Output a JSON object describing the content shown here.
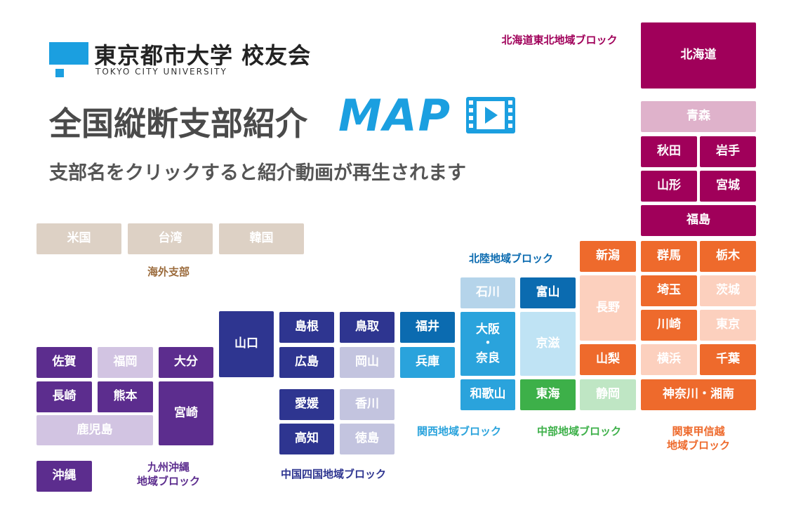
{
  "header": {
    "logo_title": "東京都市大学 校友会",
    "logo_subtitle": "TOKYO CITY UNIVERSITY",
    "headline": "全国縦断支部紹介",
    "headline_map": "MAP",
    "subline": "支部名をクリックすると紹介動画が再生されます",
    "video_icon": "video-play-icon"
  },
  "colors": {
    "brand": "#1b9fe0",
    "hokkaido_tohoku": "#a0005a",
    "kanto": "#ee6a2c",
    "chubu": "#3db049",
    "hokuriku": "#0b6bb0",
    "kansai": "#2aa3dc",
    "chugoku_shikoku": "#2e3590",
    "kyushu": "#5c2d8e",
    "overseas": "#ddd1c5"
  },
  "blocks": {
    "overseas": "海外支部",
    "hokkaido_tohoku": "北海道東北地域ブロック",
    "hokuriku": "北陸地域ブロック",
    "kansai": "関西地域ブロック",
    "chubu": "中部地域ブロック",
    "kanto": "関東甲信越\n地域ブロック",
    "chugoku_shikoku": "中国四国地域ブロック",
    "kyushu": "九州沖縄\n地域ブロック"
  },
  "branches": {
    "usa": "米国",
    "taiwan": "台湾",
    "korea": "韓国",
    "hokkaido": "北海道",
    "aomori": "青森",
    "akita": "秋田",
    "iwate": "岩手",
    "yamagata": "山形",
    "miyagi": "宮城",
    "fukushima": "福島",
    "niigata": "新潟",
    "gunma": "群馬",
    "tochigi": "栃木",
    "saitama": "埼玉",
    "ibaraki": "茨城",
    "nagano": "長野",
    "kawasaki": "川崎",
    "tokyo": "東京",
    "yamanashi": "山梨",
    "yokohama": "横浜",
    "chiba": "千葉",
    "shizuoka": "静岡",
    "kanagawa": "神奈川・湘南",
    "ishikawa": "石川",
    "toyama": "富山",
    "osaka_nara": "大阪\n・\n奈良",
    "shiga": "京滋",
    "wakayama": "和歌山",
    "tokai": "東海",
    "fukui": "福井",
    "hyogo": "兵庫",
    "shimane": "島根",
    "tottori": "鳥取",
    "hiroshima": "広島",
    "okayama": "岡山",
    "yamaguchi": "山口",
    "ehime": "愛媛",
    "kagawa": "香川",
    "kochi": "高知",
    "tokushima": "徳島",
    "saga": "佐賀",
    "fukuoka": "福岡",
    "oita": "大分",
    "nagasaki": "長崎",
    "kumamoto": "熊本",
    "miyazaki": "宮崎",
    "kagoshima": "鹿児島",
    "okinawa": "沖縄"
  }
}
